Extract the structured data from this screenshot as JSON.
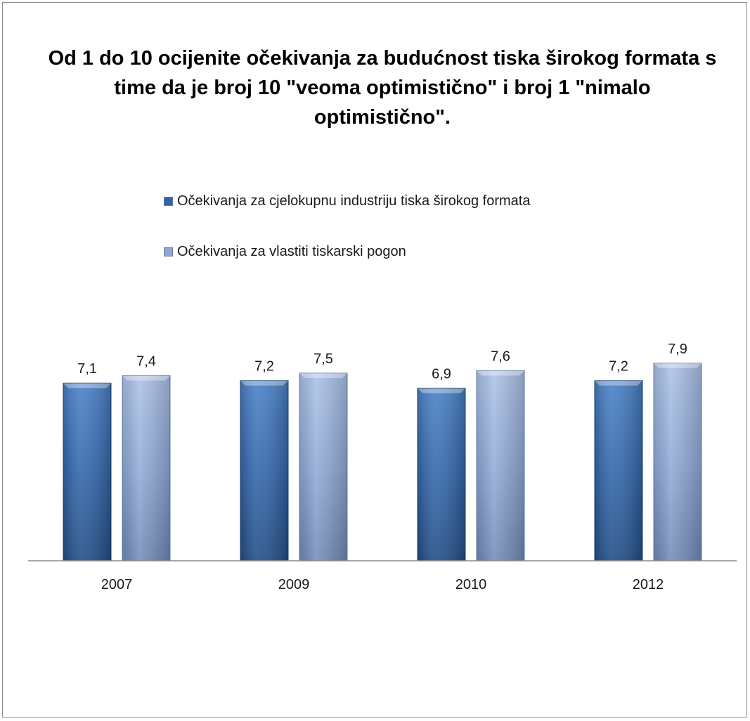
{
  "chart_data": {
    "type": "bar",
    "title": "Od 1 do 10 ocijenite očekivanja za budućnost tiska širokog formata s time da je broj 10 \"veoma optimistično\" i broj 1 \"nimalo optimistično\".",
    "categories": [
      "2007",
      "2009",
      "2010",
      "2012"
    ],
    "series": [
      {
        "name": "Očekivanja za cjelokupnu industriju tiska širokog formata",
        "values": [
          7.1,
          7.2,
          6.9,
          7.2
        ],
        "labels": [
          "7,1",
          "7,2",
          "6,9",
          "7,2"
        ],
        "color": "#2f63a8"
      },
      {
        "name": "Očekivanja za vlastiti tiskarski pogon",
        "values": [
          7.4,
          7.5,
          7.6,
          7.9
        ],
        "labels": [
          "7,4",
          "7,5",
          "7,6",
          "7,9"
        ],
        "color": "#8ea8d6"
      }
    ],
    "ylim": [
      0,
      10
    ],
    "grid": false,
    "legend_position": "top"
  }
}
